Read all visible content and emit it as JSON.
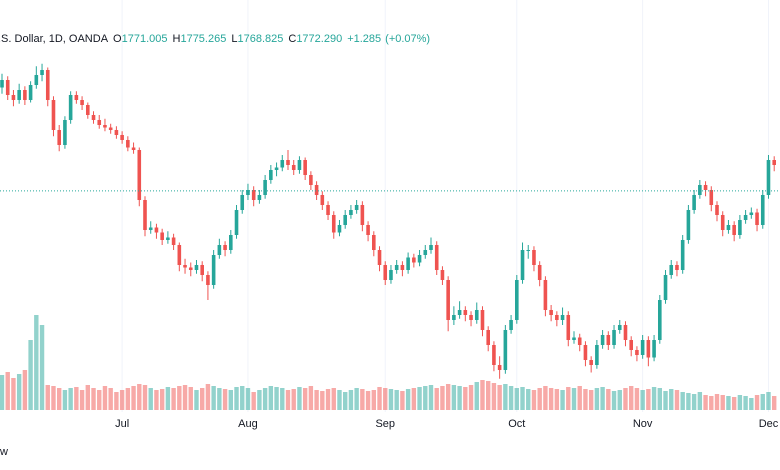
{
  "header": {
    "symbol": ".S. Dollar, 1D, OANDA",
    "fields": [
      {
        "prefix": "O",
        "value": 1771.005,
        "label": "1771.005"
      },
      {
        "prefix": "H",
        "value": 1775.265,
        "label": "1775.265"
      },
      {
        "prefix": "L",
        "value": 1768.825,
        "label": "1768.825"
      },
      {
        "prefix": "C",
        "value": 1772.29,
        "label": "1772.290"
      }
    ],
    "change": {
      "value": 1.285,
      "label": "+1.285"
    },
    "change_pct": {
      "value": 0.07,
      "label": "(+0.07%)"
    }
  },
  "footer": "w",
  "chart_data": {
    "type": "candlestick",
    "up_color": "#26a69a",
    "down_color": "#ef5350",
    "ylim": [
      1605,
      1905
    ],
    "categories": [
      null,
      null,
      null,
      null,
      null,
      null,
      null,
      null,
      null,
      null,
      null,
      null,
      null,
      null,
      null,
      null,
      null,
      null,
      null,
      null,
      null,
      "Jul",
      null,
      null,
      null,
      null,
      null,
      null,
      null,
      null,
      null,
      null,
      null,
      null,
      null,
      null,
      null,
      null,
      null,
      null,
      null,
      null,
      null,
      "Aug",
      null,
      null,
      null,
      null,
      null,
      null,
      null,
      null,
      null,
      null,
      null,
      null,
      null,
      null,
      null,
      null,
      null,
      null,
      null,
      null,
      null,
      null,
      null,
      "Sep",
      null,
      null,
      null,
      null,
      null,
      null,
      null,
      null,
      null,
      null,
      null,
      null,
      null,
      null,
      null,
      null,
      null,
      null,
      null,
      null,
      null,
      null,
      "Oct",
      null,
      null,
      null,
      null,
      null,
      null,
      null,
      null,
      null,
      null,
      null,
      null,
      null,
      null,
      null,
      null,
      null,
      null,
      null,
      null,
      null,
      "Nov",
      null,
      null,
      null,
      null,
      null,
      null,
      null,
      null,
      null,
      null,
      null,
      null,
      null,
      null,
      null,
      null,
      null,
      null,
      null,
      null,
      null,
      "Dec",
      null
    ],
    "candles": [
      [
        1855,
        1866,
        1850,
        1861
      ],
      [
        1861,
        1864,
        1845,
        1849
      ],
      [
        1849,
        1853,
        1840,
        1845
      ],
      [
        1845,
        1858,
        1842,
        1853
      ],
      [
        1853,
        1856,
        1841,
        1845
      ],
      [
        1845,
        1860,
        1843,
        1857
      ],
      [
        1857,
        1872,
        1854,
        1865
      ],
      [
        1865,
        1874,
        1860,
        1869
      ],
      [
        1869,
        1871,
        1840,
        1845
      ],
      [
        1845,
        1848,
        1816,
        1821
      ],
      [
        1821,
        1825,
        1804,
        1809
      ],
      [
        1809,
        1832,
        1806,
        1829
      ],
      [
        1829,
        1852,
        1826,
        1849
      ],
      [
        1849,
        1852,
        1842,
        1845
      ],
      [
        1845,
        1848,
        1837,
        1841
      ],
      [
        1841,
        1843,
        1830,
        1833
      ],
      [
        1833,
        1836,
        1826,
        1829
      ],
      [
        1829,
        1833,
        1822,
        1825
      ],
      [
        1825,
        1830,
        1820,
        1823
      ],
      [
        1823,
        1826,
        1818,
        1821
      ],
      [
        1821,
        1824,
        1814,
        1817
      ],
      [
        1817,
        1820,
        1810,
        1813
      ],
      [
        1813,
        1816,
        1804,
        1807
      ],
      [
        1807,
        1811,
        1802,
        1805
      ],
      [
        1805,
        1807,
        1760,
        1765
      ],
      [
        1765,
        1768,
        1736,
        1741
      ],
      [
        1741,
        1748,
        1738,
        1743
      ],
      [
        1743,
        1746,
        1734,
        1739
      ],
      [
        1739,
        1742,
        1729,
        1733
      ],
      [
        1733,
        1740,
        1730,
        1735
      ],
      [
        1735,
        1738,
        1725,
        1729
      ],
      [
        1729,
        1731,
        1708,
        1713
      ],
      [
        1713,
        1718,
        1706,
        1711
      ],
      [
        1711,
        1715,
        1704,
        1709
      ],
      [
        1709,
        1717,
        1706,
        1713
      ],
      [
        1713,
        1716,
        1700,
        1705
      ],
      [
        1705,
        1708,
        1685,
        1697
      ],
      [
        1697,
        1725,
        1694,
        1721
      ],
      [
        1721,
        1734,
        1718,
        1729
      ],
      [
        1729,
        1732,
        1720,
        1725
      ],
      [
        1725,
        1741,
        1722,
        1737
      ],
      [
        1737,
        1761,
        1734,
        1757
      ],
      [
        1757,
        1773,
        1754,
        1769
      ],
      [
        1769,
        1778,
        1765,
        1773
      ],
      [
        1773,
        1776,
        1760,
        1765
      ],
      [
        1765,
        1773,
        1762,
        1769
      ],
      [
        1769,
        1785,
        1766,
        1781
      ],
      [
        1781,
        1793,
        1778,
        1789
      ],
      [
        1789,
        1795,
        1784,
        1791
      ],
      [
        1791,
        1801,
        1788,
        1797
      ],
      [
        1797,
        1805,
        1789,
        1793
      ],
      [
        1793,
        1797,
        1785,
        1789
      ],
      [
        1789,
        1800,
        1786,
        1797
      ],
      [
        1797,
        1799,
        1781,
        1785
      ],
      [
        1785,
        1788,
        1773,
        1777
      ],
      [
        1777,
        1780,
        1765,
        1769
      ],
      [
        1769,
        1772,
        1757,
        1761
      ],
      [
        1761,
        1764,
        1749,
        1753
      ],
      [
        1753,
        1756,
        1734,
        1739
      ],
      [
        1739,
        1749,
        1736,
        1745
      ],
      [
        1745,
        1757,
        1742,
        1753
      ],
      [
        1753,
        1761,
        1750,
        1757
      ],
      [
        1757,
        1765,
        1754,
        1761
      ],
      [
        1761,
        1764,
        1740,
        1745
      ],
      [
        1745,
        1748,
        1732,
        1737
      ],
      [
        1737,
        1740,
        1720,
        1725
      ],
      [
        1725,
        1728,
        1708,
        1713
      ],
      [
        1713,
        1716,
        1697,
        1701
      ],
      [
        1701,
        1713,
        1698,
        1709
      ],
      [
        1709,
        1717,
        1706,
        1713
      ],
      [
        1713,
        1716,
        1704,
        1709
      ],
      [
        1709,
        1723,
        1706,
        1719
      ],
      [
        1719,
        1722,
        1711,
        1715
      ],
      [
        1715,
        1725,
        1712,
        1721
      ],
      [
        1721,
        1729,
        1718,
        1725
      ],
      [
        1725,
        1735,
        1722,
        1729
      ],
      [
        1729,
        1732,
        1705,
        1709
      ],
      [
        1709,
        1712,
        1697,
        1701
      ],
      [
        1701,
        1704,
        1660,
        1669
      ],
      [
        1669,
        1680,
        1665,
        1673
      ],
      [
        1673,
        1684,
        1670,
        1677
      ],
      [
        1677,
        1680,
        1668,
        1673
      ],
      [
        1673,
        1676,
        1664,
        1669
      ],
      [
        1669,
        1683,
        1666,
        1677
      ],
      [
        1677,
        1680,
        1656,
        1661
      ],
      [
        1661,
        1664,
        1644,
        1649
      ],
      [
        1649,
        1652,
        1628,
        1633
      ],
      [
        1633,
        1640,
        1622,
        1629
      ],
      [
        1629,
        1665,
        1626,
        1661
      ],
      [
        1661,
        1673,
        1658,
        1669
      ],
      [
        1669,
        1705,
        1666,
        1701
      ],
      [
        1701,
        1731,
        1698,
        1725
      ],
      [
        1725,
        1729,
        1718,
        1725
      ],
      [
        1725,
        1728,
        1708,
        1713
      ],
      [
        1713,
        1716,
        1696,
        1701
      ],
      [
        1701,
        1704,
        1672,
        1677
      ],
      [
        1677,
        1681,
        1668,
        1673
      ],
      [
        1673,
        1676,
        1664,
        1669
      ],
      [
        1669,
        1679,
        1665,
        1673
      ],
      [
        1673,
        1676,
        1648,
        1653
      ],
      [
        1653,
        1660,
        1650,
        1655
      ],
      [
        1655,
        1658,
        1644,
        1649
      ],
      [
        1649,
        1652,
        1632,
        1637
      ],
      [
        1637,
        1640,
        1627,
        1633
      ],
      [
        1633,
        1653,
        1630,
        1649
      ],
      [
        1649,
        1661,
        1646,
        1657
      ],
      [
        1657,
        1660,
        1645,
        1649
      ],
      [
        1649,
        1665,
        1646,
        1661
      ],
      [
        1661,
        1669,
        1658,
        1665
      ],
      [
        1665,
        1668,
        1648,
        1653
      ],
      [
        1653,
        1656,
        1640,
        1645
      ],
      [
        1645,
        1648,
        1636,
        1641
      ],
      [
        1641,
        1657,
        1638,
        1653
      ],
      [
        1653,
        1656,
        1632,
        1639
      ],
      [
        1639,
        1657,
        1636,
        1653
      ],
      [
        1653,
        1689,
        1650,
        1685
      ],
      [
        1685,
        1709,
        1682,
        1705
      ],
      [
        1705,
        1717,
        1702,
        1713
      ],
      [
        1713,
        1716,
        1704,
        1709
      ],
      [
        1709,
        1737,
        1706,
        1733
      ],
      [
        1733,
        1761,
        1730,
        1757
      ],
      [
        1757,
        1773,
        1754,
        1769
      ],
      [
        1769,
        1781,
        1766,
        1777
      ],
      [
        1777,
        1780,
        1768,
        1773
      ],
      [
        1773,
        1776,
        1756,
        1761
      ],
      [
        1761,
        1764,
        1748,
        1753
      ],
      [
        1753,
        1756,
        1736,
        1741
      ],
      [
        1741,
        1749,
        1738,
        1745
      ],
      [
        1745,
        1748,
        1732,
        1737
      ],
      [
        1737,
        1753,
        1734,
        1749
      ],
      [
        1749,
        1757,
        1746,
        1753
      ],
      [
        1753,
        1759,
        1750,
        1755
      ],
      [
        1755,
        1758,
        1740,
        1745
      ],
      [
        1745,
        1773,
        1742,
        1769
      ],
      [
        1769,
        1801,
        1766,
        1797
      ],
      [
        1797,
        1800,
        1788,
        1793
      ]
    ],
    "volume": [
      35,
      38,
      32,
      36,
      40,
      70,
      95,
      85,
      25,
      24,
      22,
      20,
      22,
      23,
      20,
      25,
      22,
      20,
      24,
      22,
      18,
      20,
      22,
      24,
      26,
      25,
      22,
      20,
      21,
      23,
      22,
      24,
      25,
      23,
      20,
      22,
      26,
      24,
      22,
      21,
      20,
      23,
      24,
      22,
      18,
      20,
      22,
      24,
      23,
      22,
      20,
      21,
      23,
      22,
      24,
      20,
      19,
      21,
      22,
      20,
      18,
      20,
      22,
      21,
      19,
      20,
      23,
      22,
      21,
      20,
      19,
      21,
      22,
      23,
      24,
      25,
      22,
      24,
      26,
      25,
      24,
      23,
      25,
      28,
      30,
      29,
      27,
      25,
      26,
      24,
      22,
      23,
      21,
      20,
      22,
      24,
      22,
      21,
      20,
      23,
      22,
      24,
      21,
      20,
      22,
      23,
      21,
      19,
      20,
      22,
      24,
      22,
      20,
      21,
      23,
      22,
      19,
      21,
      20,
      18,
      17,
      16,
      18,
      15,
      14,
      16,
      15,
      14,
      13,
      15,
      14,
      12,
      15,
      16,
      18,
      14
    ]
  }
}
